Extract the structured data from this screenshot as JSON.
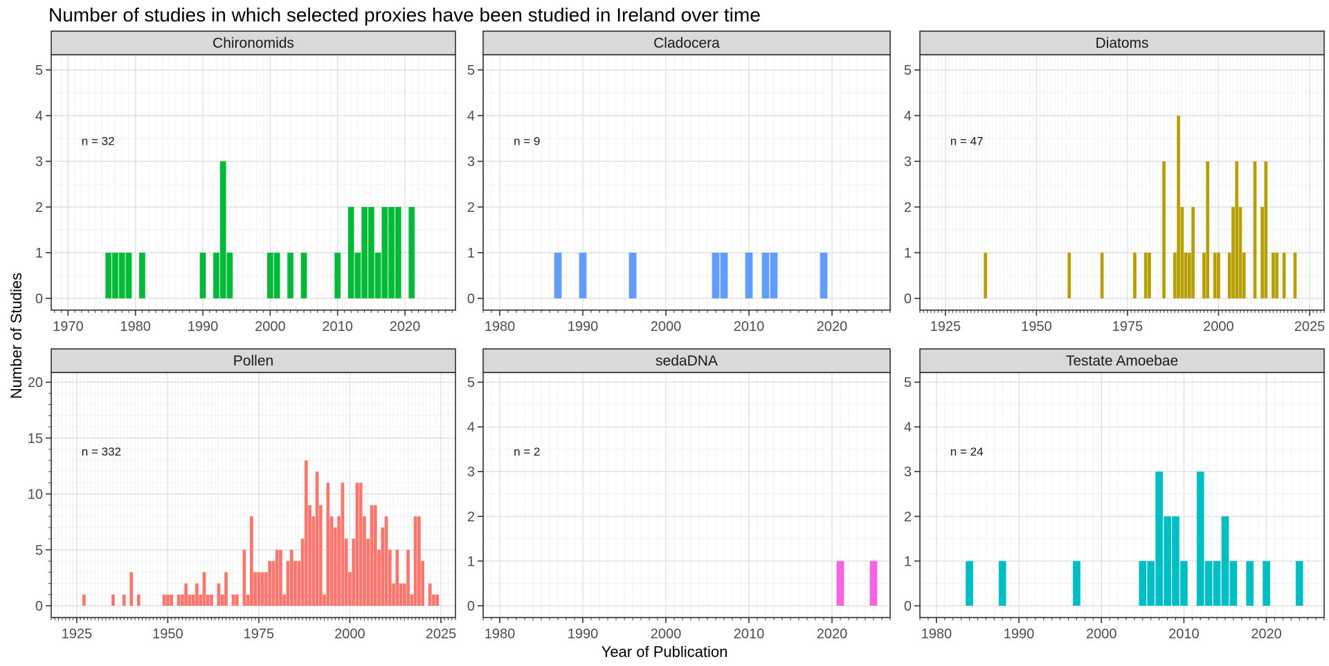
{
  "title": "Number of studies in which selected proxies have been studied in Ireland over time",
  "axes": {
    "x_title": "Year of Publication",
    "y_title": "Number of Studies"
  },
  "style": {
    "strip_bg": "#D9D9D9",
    "panel_border": "#2E2E2E",
    "grid_major": "#E0E0E0",
    "grid_minor": "#F2F2F2",
    "tick_color": "#333333",
    "tick_label_color": "#4D4D4D"
  },
  "chart_data": [
    {
      "type": "bar",
      "facet": "Chironomids",
      "n_label": "n = 32",
      "color": "#00BA38",
      "x_domain": [
        1967.5,
        2027.5
      ],
      "x_ticks": [
        1970,
        1980,
        1990,
        2000,
        2010,
        2020
      ],
      "ylim": [
        0,
        5
      ],
      "y_ticks": [
        0,
        1,
        2,
        3,
        4,
        5
      ],
      "years": [
        1976,
        1977,
        1978,
        1979,
        1981,
        1990,
        1992,
        1993,
        1994,
        2000,
        2001,
        2003,
        2005,
        2010,
        2012,
        2013,
        2014,
        2015,
        2016,
        2017,
        2018,
        2019,
        2021
      ],
      "counts": [
        1,
        1,
        1,
        1,
        1,
        1,
        1,
        3,
        1,
        1,
        1,
        1,
        1,
        1,
        2,
        1,
        2,
        2,
        1,
        2,
        2,
        2,
        2
      ]
    },
    {
      "type": "bar",
      "facet": "Cladocera",
      "n_label": "n = 9",
      "color": "#619CFF",
      "x_domain": [
        1978,
        2027
      ],
      "x_ticks": [
        1980,
        1990,
        2000,
        2010,
        2020
      ],
      "ylim": [
        0,
        5
      ],
      "y_ticks": [
        0,
        1,
        2,
        3,
        4,
        5
      ],
      "years": [
        1987,
        1990,
        1996,
        2006,
        2007,
        2010,
        2012,
        2013,
        2019
      ],
      "counts": [
        1,
        1,
        1,
        1,
        1,
        1,
        1,
        1,
        1
      ]
    },
    {
      "type": "bar",
      "facet": "Diatoms",
      "n_label": "n = 47",
      "color": "#B79F00",
      "x_domain": [
        1918,
        2029
      ],
      "x_ticks": [
        1925,
        1950,
        1975,
        2000,
        2025
      ],
      "ylim": [
        0,
        5
      ],
      "y_ticks": [
        0,
        1,
        2,
        3,
        4,
        5
      ],
      "years": [
        1936,
        1959,
        1968,
        1977,
        1980,
        1981,
        1985,
        1988,
        1989,
        1990,
        1991,
        1992,
        1993,
        1996,
        1997,
        1999,
        2000,
        2003,
        2004,
        2005,
        2006,
        2007,
        2010,
        2012,
        2013,
        2015,
        2016,
        2018,
        2021
      ],
      "counts": [
        1,
        1,
        1,
        1,
        1,
        1,
        3,
        1,
        4,
        2,
        1,
        1,
        2,
        1,
        3,
        1,
        1,
        1,
        2,
        3,
        2,
        1,
        3,
        2,
        3,
        1,
        1,
        1,
        1
      ]
    },
    {
      "type": "bar",
      "facet": "Pollen",
      "n_label": "n = 332",
      "color": "#F8766D",
      "x_domain": [
        1918,
        2029
      ],
      "x_ticks": [
        1925,
        1950,
        1975,
        2000,
        2025
      ],
      "ylim": [
        0,
        20
      ],
      "y_ticks": [
        0,
        5,
        10,
        15,
        20
      ],
      "years": [
        1927,
        1935,
        1938,
        1940,
        1942,
        1949,
        1950,
        1951,
        1953,
        1954,
        1955,
        1956,
        1957,
        1958,
        1959,
        1960,
        1961,
        1962,
        1964,
        1965,
        1966,
        1968,
        1969,
        1971,
        1972,
        1973,
        1974,
        1975,
        1976,
        1977,
        1978,
        1979,
        1980,
        1981,
        1982,
        1983,
        1984,
        1985,
        1986,
        1987,
        1988,
        1989,
        1990,
        1991,
        1992,
        1993,
        1994,
        1995,
        1996,
        1997,
        1998,
        1999,
        2000,
        2001,
        2002,
        2003,
        2004,
        2005,
        2006,
        2007,
        2008,
        2009,
        2010,
        2011,
        2012,
        2013,
        2014,
        2015,
        2016,
        2017,
        2018,
        2019,
        2020,
        2022,
        2023,
        2024
      ],
      "counts": [
        1,
        1,
        1,
        3,
        1,
        1,
        1,
        1,
        1,
        1,
        2,
        1,
        1,
        2,
        1,
        3,
        1,
        1,
        2,
        1,
        3,
        1,
        1,
        5,
        1,
        8,
        3,
        3,
        3,
        3,
        4,
        4,
        5,
        5,
        1,
        4,
        5,
        4,
        4,
        6,
        13,
        9,
        8,
        12,
        9,
        1,
        11,
        8,
        7,
        8,
        11,
        6,
        3,
        6,
        11,
        11,
        8,
        6,
        9,
        9,
        5,
        7,
        8,
        5,
        2,
        5,
        2,
        2,
        5,
        1,
        8,
        8,
        4,
        2,
        1,
        1
      ]
    },
    {
      "type": "bar",
      "facet": "sedaDNA",
      "n_label": "n = 2",
      "color": "#F564E3",
      "x_domain": [
        1978,
        2027
      ],
      "x_ticks": [
        1980,
        1990,
        2000,
        2010,
        2020
      ],
      "ylim": [
        0,
        5
      ],
      "y_ticks": [
        0,
        1,
        2,
        3,
        4,
        5
      ],
      "years": [
        2021,
        2025
      ],
      "counts": [
        1,
        1
      ]
    },
    {
      "type": "bar",
      "facet": "Testate Amoebae",
      "n_label": "n = 24",
      "color": "#00BFC4",
      "x_domain": [
        1978,
        2027
      ],
      "x_ticks": [
        1980,
        1990,
        2000,
        2010,
        2020
      ],
      "ylim": [
        0,
        5
      ],
      "y_ticks": [
        0,
        1,
        2,
        3,
        4,
        5
      ],
      "years": [
        1984,
        1988,
        1997,
        2005,
        2006,
        2007,
        2008,
        2009,
        2010,
        2012,
        2013,
        2014,
        2015,
        2016,
        2018,
        2020,
        2024
      ],
      "counts": [
        1,
        1,
        1,
        1,
        1,
        3,
        2,
        2,
        1,
        3,
        1,
        1,
        2,
        1,
        1,
        1,
        1
      ]
    }
  ]
}
